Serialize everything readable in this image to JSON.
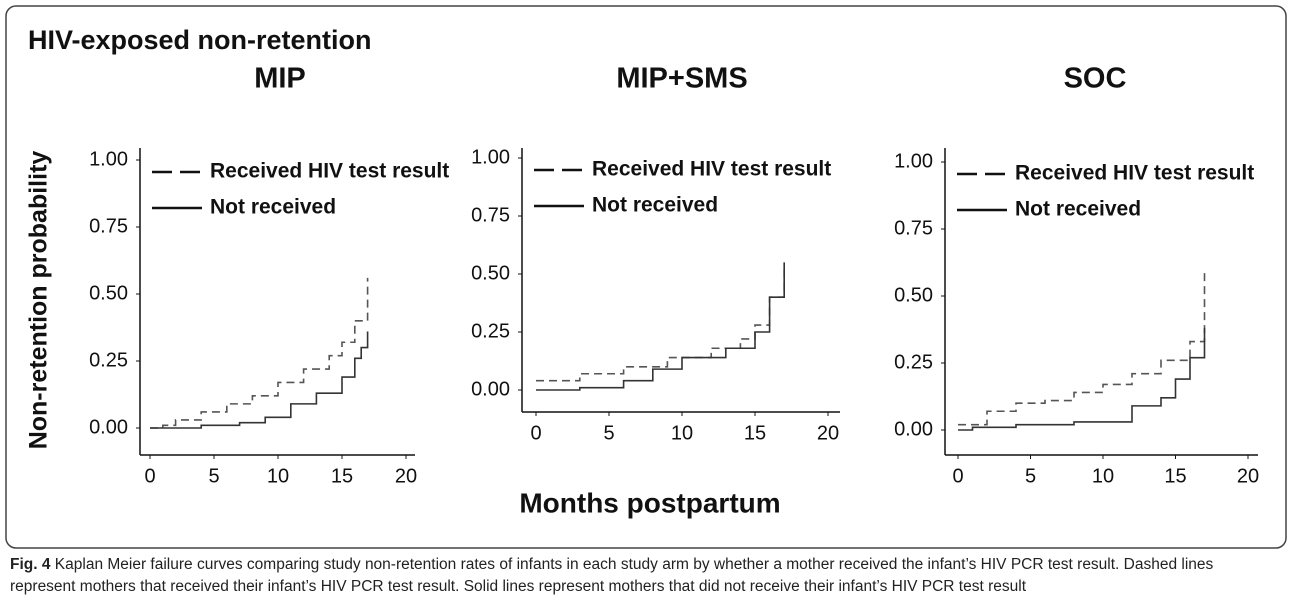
{
  "figure": {
    "title": "HIV-exposed non-retention",
    "y_label": "Non-retention probability",
    "x_label": "Months postpartum",
    "caption": {
      "label": "Fig. 4",
      "text": "Kaplan Meier failure curves comparing study non-retention rates of infants in each study arm by whether a mother received the infant’s HIV PCR test result. Dashed lines represent mothers that received their infant’s HIV PCR test result. Solid lines represent mothers that did not receive their infant’s HIV PCR test result"
    }
  },
  "chart_data": [
    {
      "type": "step",
      "title": "MIP",
      "xlim": [
        0,
        20
      ],
      "xticks": [
        0,
        5,
        10,
        15,
        20
      ],
      "ylim": [
        0,
        1
      ],
      "yticks": [
        {
          "value": 0,
          "label": "0.00"
        },
        {
          "value": 0.25,
          "label": "0.25"
        },
        {
          "value": 0.5,
          "label": "0.50"
        },
        {
          "value": 0.75,
          "label": "0.75"
        },
        {
          "value": 1,
          "label": "1.00"
        }
      ],
      "legend": "top-left",
      "series": [
        {
          "name": "Received HIV test result",
          "color": "#555555",
          "style": "dashed",
          "x": [
            0,
            1,
            2,
            4,
            6,
            8,
            10,
            12,
            14,
            15,
            16,
            17
          ],
          "values": [
            0,
            0.01,
            0.03,
            0.06,
            0.09,
            0.12,
            0.17,
            0.22,
            0.27,
            0.32,
            0.4,
            0.56
          ]
        },
        {
          "name": "Not received",
          "color": "#333333",
          "style": "solid",
          "x": [
            0,
            4,
            7,
            9,
            11,
            13,
            15,
            16,
            16.5,
            17
          ],
          "values": [
            0,
            0.01,
            0.02,
            0.04,
            0.09,
            0.13,
            0.19,
            0.26,
            0.3,
            0.36
          ]
        }
      ]
    },
    {
      "type": "step",
      "title": "MIP+SMS",
      "xlim": [
        0,
        20
      ],
      "xticks": [
        0,
        5,
        10,
        15,
        20
      ],
      "ylim": [
        0,
        1
      ],
      "yticks": [
        {
          "value": 0,
          "label": "0.00"
        },
        {
          "value": 0.25,
          "label": "0.25"
        },
        {
          "value": 0.5,
          "label": "0.50"
        },
        {
          "value": 0.75,
          "label": "0.75"
        },
        {
          "value": 1,
          "label": "1.00"
        }
      ],
      "legend": "top-left",
      "series": [
        {
          "name": "Received HIV test result",
          "color": "#555555",
          "style": "dashed",
          "x": [
            0,
            3,
            6,
            9,
            12,
            14,
            15,
            16,
            17
          ],
          "values": [
            0.04,
            0.07,
            0.1,
            0.14,
            0.18,
            0.22,
            0.28,
            0.4,
            0.54
          ]
        },
        {
          "name": "Not received",
          "color": "#333333",
          "style": "solid",
          "x": [
            0,
            3,
            6,
            8,
            10,
            13,
            15,
            16,
            17
          ],
          "values": [
            0,
            0.01,
            0.04,
            0.09,
            0.14,
            0.18,
            0.25,
            0.4,
            0.55
          ]
        }
      ]
    },
    {
      "type": "step",
      "title": "SOC",
      "xlim": [
        0,
        20
      ],
      "xticks": [
        0,
        5,
        10,
        15,
        20
      ],
      "ylim": [
        0,
        1
      ],
      "yticks": [
        {
          "value": 0,
          "label": "0.00"
        },
        {
          "value": 0.25,
          "label": "0.25"
        },
        {
          "value": 0.5,
          "label": "0.50"
        },
        {
          "value": 0.75,
          "label": "0.75"
        },
        {
          "value": 1,
          "label": "1.00"
        }
      ],
      "legend": "top-left",
      "series": [
        {
          "name": "Received HIV test result",
          "color": "#555555",
          "style": "dashed",
          "x": [
            0,
            2,
            4,
            6,
            8,
            10,
            12,
            14,
            16,
            17
          ],
          "values": [
            0.02,
            0.07,
            0.1,
            0.11,
            0.14,
            0.17,
            0.21,
            0.26,
            0.33,
            0.6
          ]
        },
        {
          "name": "Not received",
          "color": "#333333",
          "style": "solid",
          "x": [
            0,
            1,
            4,
            8,
            12,
            14,
            15,
            16,
            17
          ],
          "values": [
            0,
            0.01,
            0.02,
            0.03,
            0.09,
            0.12,
            0.19,
            0.27,
            0.38
          ]
        }
      ]
    }
  ]
}
